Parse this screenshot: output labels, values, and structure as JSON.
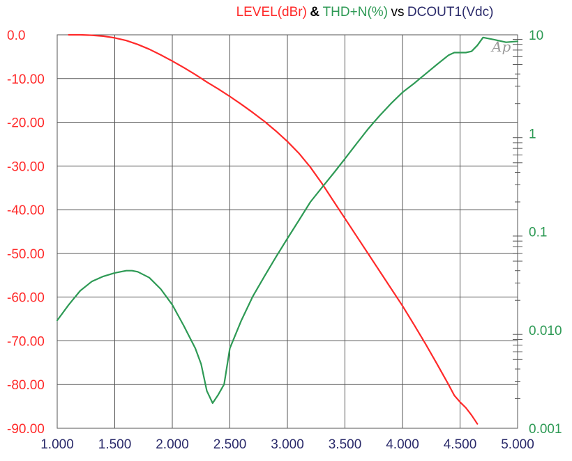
{
  "chart_data": {
    "type": "line",
    "title": {
      "part1": "LEVEL(dBr)",
      "amp": "&",
      "part2": "THD+N(%)",
      "vs": "vs",
      "part3": "DCOUT1(Vdc)"
    },
    "annotation": "Ap",
    "x_ticks": [
      "1.000",
      "1.500",
      "2.000",
      "2.500",
      "3.000",
      "3.500",
      "4.000",
      "4.500",
      "5.000"
    ],
    "y_left_ticks": [
      "0.0",
      "-10.00",
      "-20.00",
      "-30.00",
      "-40.00",
      "-50.00",
      "-60.00",
      "-70.00",
      "-80.00",
      "-90.00"
    ],
    "y_right_ticks": [
      "10",
      "1",
      "0.1",
      "0.010",
      "0.001"
    ],
    "xlim": [
      1.0,
      5.0
    ],
    "ylim_left": [
      -90,
      0
    ],
    "ylim_right": [
      0.001,
      10
    ],
    "y_right_scale": "log",
    "grid": true,
    "colors": {
      "level": "#ff2a2a",
      "thd": "#2e9a55",
      "xaxis": "#2a2a6a",
      "grid": "#555555"
    },
    "series": [
      {
        "name": "LEVEL(dBr)",
        "axis": "left",
        "x": [
          1.1,
          1.2,
          1.3,
          1.4,
          1.5,
          1.6,
          1.7,
          1.8,
          1.9,
          2.0,
          2.1,
          2.2,
          2.3,
          2.4,
          2.5,
          2.6,
          2.7,
          2.8,
          2.9,
          3.0,
          3.1,
          3.2,
          3.3,
          3.4,
          3.5,
          3.6,
          3.7,
          3.8,
          3.9,
          4.0,
          4.1,
          4.2,
          4.3,
          4.4,
          4.45,
          4.5,
          4.55,
          4.6,
          4.65
        ],
        "y": [
          0.0,
          0.0,
          -0.1,
          -0.3,
          -0.7,
          -1.3,
          -2.2,
          -3.3,
          -4.6,
          -6.0,
          -7.5,
          -9.1,
          -10.8,
          -12.4,
          -14.1,
          -15.9,
          -17.8,
          -19.8,
          -22.0,
          -24.4,
          -27.1,
          -30.3,
          -34.0,
          -38.0,
          -42.0,
          -46.0,
          -50.0,
          -54.0,
          -58.0,
          -62.0,
          -66.3,
          -70.7,
          -75.3,
          -80.0,
          -82.5,
          -84.0,
          -85.3,
          -87.0,
          -89.0
        ]
      },
      {
        "name": "THD+N(%)",
        "axis": "right",
        "x": [
          1.0,
          1.1,
          1.2,
          1.3,
          1.4,
          1.5,
          1.6,
          1.65,
          1.7,
          1.8,
          1.9,
          2.0,
          2.1,
          2.2,
          2.25,
          2.3,
          2.35,
          2.4,
          2.45,
          2.5,
          2.6,
          2.7,
          2.8,
          2.9,
          3.0,
          3.1,
          3.2,
          3.3,
          3.4,
          3.5,
          3.6,
          3.7,
          3.8,
          3.9,
          4.0,
          4.1,
          4.2,
          4.3,
          4.4,
          4.45,
          4.5,
          4.55,
          4.6,
          4.65,
          4.7,
          4.8,
          4.9,
          5.0
        ],
        "y": [
          0.0125,
          0.018,
          0.025,
          0.031,
          0.035,
          0.038,
          0.04,
          0.04,
          0.039,
          0.034,
          0.026,
          0.018,
          0.011,
          0.0065,
          0.0045,
          0.0024,
          0.0018,
          0.0022,
          0.0028,
          0.0065,
          0.0125,
          0.022,
          0.035,
          0.055,
          0.085,
          0.13,
          0.2,
          0.28,
          0.39,
          0.55,
          0.78,
          1.1,
          1.5,
          2.0,
          2.6,
          3.2,
          4.0,
          5.0,
          6.2,
          6.6,
          6.6,
          6.6,
          6.8,
          7.8,
          9.4,
          8.9,
          8.4,
          8.6
        ]
      }
    ]
  }
}
